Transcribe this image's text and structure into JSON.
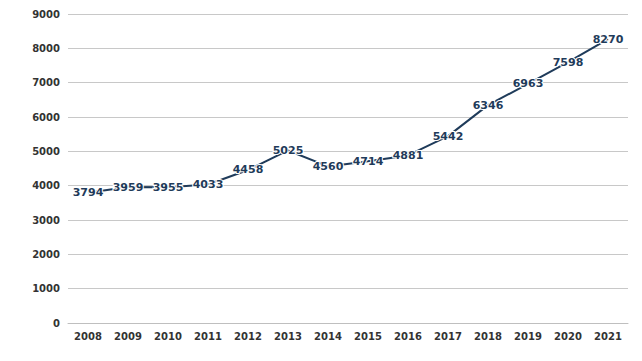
{
  "chart_data": {
    "type": "line",
    "categories": [
      "2008",
      "2009",
      "2010",
      "2011",
      "2012",
      "2013",
      "2014",
      "2015",
      "2016",
      "2017",
      "2018",
      "2019",
      "2020",
      "2021"
    ],
    "values": [
      3794,
      3959,
      3955,
      4033,
      4458,
      5025,
      4560,
      4714,
      4881,
      5442,
      6346,
      6963,
      7598,
      8270
    ],
    "color": "#1f3b5a",
    "ylim": [
      0,
      9000
    ],
    "yticks": [
      0,
      1000,
      2000,
      3000,
      4000,
      5000,
      6000,
      7000,
      8000,
      9000
    ],
    "grid": true,
    "data_labels": true
  }
}
